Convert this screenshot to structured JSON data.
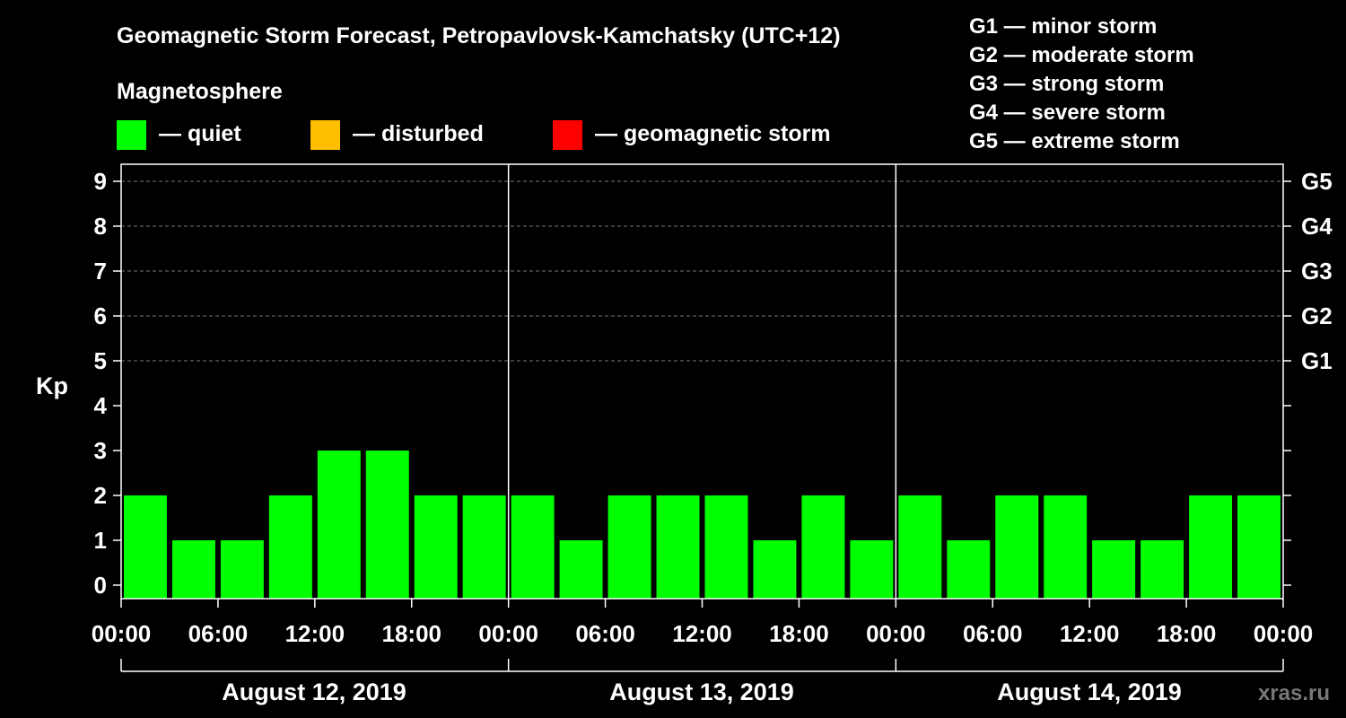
{
  "chart_data": {
    "type": "bar",
    "title": "Geomagnetic Storm Forecast, Petropavlovsk-Kamchatsky (UTC+12)",
    "subtitle": "Magnetosphere",
    "ylabel": "Kp",
    "ylim": [
      0,
      9
    ],
    "yticks": [
      "0",
      "1",
      "2",
      "3",
      "4",
      "5",
      "6",
      "7",
      "8",
      "9"
    ],
    "storm_levels": [
      {
        "label": "G1",
        "kp": 5
      },
      {
        "label": "G2",
        "kp": 6
      },
      {
        "label": "G3",
        "kp": 7
      },
      {
        "label": "G4",
        "kp": 8
      },
      {
        "label": "G5",
        "kp": 9
      }
    ],
    "storm_legend": [
      "G1 — minor storm",
      "G2 — moderate storm",
      "G3 — strong storm",
      "G4 — severe storm",
      "G5 — extreme storm"
    ],
    "legend": [
      {
        "label": "— quiet",
        "color": "#00ff00"
      },
      {
        "label": "— disturbed",
        "color": "#ffbf00"
      },
      {
        "label": "— geomagnetic storm",
        "color": "#ff0000"
      }
    ],
    "xticks": [
      "00:00",
      "06:00",
      "12:00",
      "18:00",
      "00:00",
      "06:00",
      "12:00",
      "18:00",
      "00:00",
      "06:00",
      "12:00",
      "18:00",
      "00:00"
    ],
    "days": [
      "August 12, 2019",
      "August 13, 2019",
      "August 14, 2019"
    ],
    "interval_hours": 3,
    "values": [
      2,
      1,
      1,
      2,
      3,
      3,
      2,
      2,
      2,
      1,
      2,
      2,
      2,
      1,
      2,
      1,
      2,
      1,
      2,
      2,
      1,
      1,
      2,
      2
    ],
    "colors": {
      "quiet": "#00ff00",
      "disturbed": "#ffbf00",
      "storm": "#ff0000",
      "grid": "#777777",
      "axis": "#ffffff"
    },
    "watermark": "xras.ru"
  }
}
